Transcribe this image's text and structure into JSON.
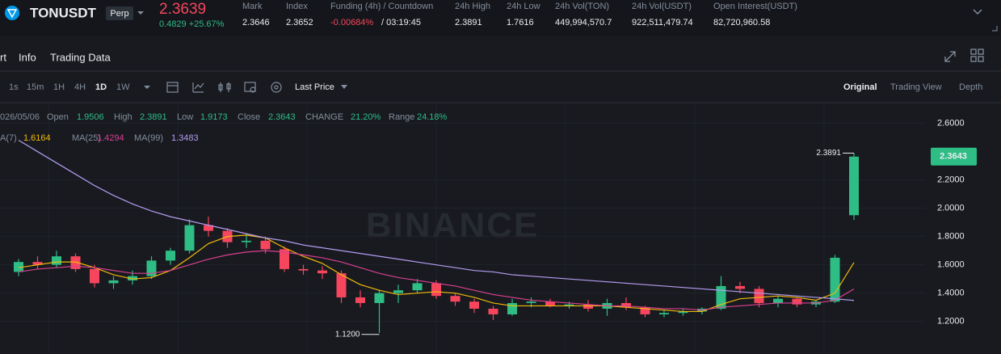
{
  "header": {
    "symbol": "TONUSDT",
    "badge": "Perp",
    "price": "2.3639",
    "change": "0.4829 +25.67%",
    "stats": [
      {
        "label": "Mark",
        "value": "2.3646"
      },
      {
        "label": "Index",
        "value": "2.3652"
      },
      {
        "label": "Funding (4h) / Countdown",
        "value": "-0.00684%",
        "extra": "/ 03:19:45"
      },
      {
        "label": "24h High",
        "value": "2.3891"
      },
      {
        "label": "24h Low",
        "value": "1.7616"
      },
      {
        "label": "24h Vol(TON)",
        "value": "449,994,570.7"
      },
      {
        "label": "24h Vol(USDT)",
        "value": "922,511,479.74"
      },
      {
        "label": "Open Interest(USDT)",
        "value": "82,720,960.58"
      }
    ]
  },
  "tabs": [
    "rt",
    "Info",
    "Trading Data"
  ],
  "intervals": [
    "1s",
    "15m",
    "1H",
    "4H",
    "1D",
    "1W"
  ],
  "price_type": "Last Price",
  "views": [
    "Original",
    "Trading View",
    "Depth"
  ],
  "legend_bar": {
    "date": "026/05/06",
    "open": "Open",
    "high": "High",
    "low": "Low",
    "close": "Close",
    "change_label": "CHANGE",
    "change": "21.20%",
    "range_label": "Range",
    "range": "24.18%"
  },
  "chart_data": {
    "type": "candlestick",
    "watermark": "BINANCE",
    "up_color": "#2ebd85",
    "down_color": "#f6465d",
    "ylim": [
      0.97,
      2.74
    ],
    "yticks": [
      {
        "value": 1.2,
        "label": "1.2000"
      },
      {
        "value": 1.4,
        "label": "1.4000"
      },
      {
        "value": 1.6,
        "label": "1.6000"
      },
      {
        "value": 1.8,
        "label": "1.8000"
      },
      {
        "value": 2.0,
        "label": "2.0000"
      },
      {
        "value": 2.2,
        "label": "2.2000"
      },
      {
        "value": 2.6,
        "label": "2.6000"
      }
    ],
    "low_label": "1.1200",
    "ohlc": [
      [
        1.55,
        1.64,
        1.52,
        1.62
      ],
      [
        1.62,
        1.66,
        1.57,
        1.6
      ],
      [
        1.6,
        1.7,
        1.58,
        1.66
      ],
      [
        1.66,
        1.68,
        1.55,
        1.57
      ],
      [
        1.57,
        1.6,
        1.44,
        1.47
      ],
      [
        1.47,
        1.52,
        1.43,
        1.49
      ],
      [
        1.49,
        1.56,
        1.46,
        1.52
      ],
      [
        1.52,
        1.66,
        1.5,
        1.63
      ],
      [
        1.63,
        1.72,
        1.6,
        1.7
      ],
      [
        1.7,
        1.92,
        1.68,
        1.88
      ],
      [
        1.88,
        1.94,
        1.8,
        1.84
      ],
      [
        1.84,
        1.86,
        1.72,
        1.76
      ],
      [
        1.76,
        1.82,
        1.72,
        1.77
      ],
      [
        1.77,
        1.8,
        1.68,
        1.71
      ],
      [
        1.71,
        1.73,
        1.55,
        1.57
      ],
      [
        1.57,
        1.6,
        1.53,
        1.56
      ],
      [
        1.56,
        1.59,
        1.5,
        1.54
      ],
      [
        1.54,
        1.56,
        1.33,
        1.37
      ],
      [
        1.37,
        1.42,
        1.3,
        1.33
      ],
      [
        1.33,
        1.42,
        1.12,
        1.4
      ],
      [
        1.4,
        1.46,
        1.33,
        1.42
      ],
      [
        1.42,
        1.5,
        1.4,
        1.47
      ],
      [
        1.47,
        1.49,
        1.36,
        1.38
      ],
      [
        1.38,
        1.4,
        1.31,
        1.34
      ],
      [
        1.34,
        1.36,
        1.26,
        1.29
      ],
      [
        1.29,
        1.31,
        1.21,
        1.25
      ],
      [
        1.25,
        1.36,
        1.24,
        1.33
      ],
      [
        1.33,
        1.37,
        1.3,
        1.34
      ],
      [
        1.34,
        1.36,
        1.3,
        1.31
      ],
      [
        1.31,
        1.34,
        1.29,
        1.32
      ],
      [
        1.32,
        1.35,
        1.27,
        1.29
      ],
      [
        1.29,
        1.36,
        1.24,
        1.33
      ],
      [
        1.33,
        1.37,
        1.28,
        1.3
      ],
      [
        1.3,
        1.31,
        1.23,
        1.25
      ],
      [
        1.25,
        1.28,
        1.23,
        1.26
      ],
      [
        1.26,
        1.29,
        1.24,
        1.27
      ],
      [
        1.27,
        1.3,
        1.25,
        1.29
      ],
      [
        1.29,
        1.52,
        1.28,
        1.45
      ],
      [
        1.45,
        1.48,
        1.4,
        1.43
      ],
      [
        1.43,
        1.45,
        1.3,
        1.33
      ],
      [
        1.33,
        1.38,
        1.3,
        1.36
      ],
      [
        1.36,
        1.37,
        1.3,
        1.32
      ],
      [
        1.32,
        1.35,
        1.3,
        1.34
      ],
      [
        1.34,
        1.67,
        1.33,
        1.65
      ],
      [
        1.9506,
        2.3891,
        1.9173,
        2.3643
      ]
    ],
    "series": [
      {
        "name": "A(7)",
        "color": "#f0b90b",
        "values": [
          1.58,
          1.6,
          1.62,
          1.62,
          1.58,
          1.53,
          1.5,
          1.51,
          1.56,
          1.65,
          1.75,
          1.8,
          1.81,
          1.79,
          1.72,
          1.66,
          1.61,
          1.53,
          1.46,
          1.42,
          1.39,
          1.4,
          1.41,
          1.4,
          1.37,
          1.33,
          1.31,
          1.31,
          1.31,
          1.31,
          1.31,
          1.31,
          1.3,
          1.29,
          1.28,
          1.27,
          1.27,
          1.32,
          1.36,
          1.37,
          1.38,
          1.37,
          1.35,
          1.4,
          1.6164
        ]
      },
      {
        "name": "MA(25)",
        "color": "#d9408f",
        "values": [
          1.55,
          1.57,
          1.58,
          1.59,
          1.58,
          1.56,
          1.54,
          1.54,
          1.56,
          1.6,
          1.64,
          1.67,
          1.69,
          1.7,
          1.69,
          1.67,
          1.65,
          1.62,
          1.58,
          1.54,
          1.51,
          1.49,
          1.47,
          1.45,
          1.42,
          1.39,
          1.37,
          1.35,
          1.34,
          1.33,
          1.32,
          1.31,
          1.31,
          1.3,
          1.29,
          1.29,
          1.28,
          1.3,
          1.31,
          1.32,
          1.33,
          1.33,
          1.33,
          1.35,
          1.4294
        ]
      },
      {
        "name": "MA(99)",
        "color": "#b59cf0",
        "values": [
          2.48,
          2.4,
          2.32,
          2.24,
          2.16,
          2.09,
          2.03,
          1.98,
          1.94,
          1.91,
          1.88,
          1.85,
          1.82,
          1.79,
          1.77,
          1.74,
          1.72,
          1.7,
          1.68,
          1.66,
          1.64,
          1.62,
          1.6,
          1.58,
          1.56,
          1.55,
          1.53,
          1.52,
          1.51,
          1.5,
          1.49,
          1.48,
          1.47,
          1.46,
          1.45,
          1.44,
          1.43,
          1.42,
          1.41,
          1.4,
          1.39,
          1.38,
          1.37,
          1.36,
          1.3483
        ]
      }
    ]
  }
}
